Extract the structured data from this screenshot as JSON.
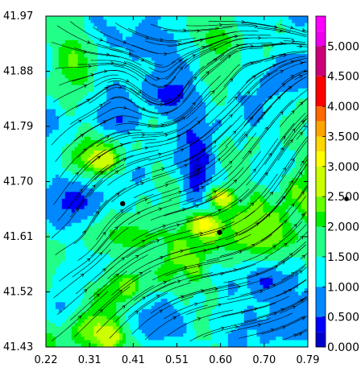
{
  "chart_data": {
    "type": "heatmap",
    "subtype": "scalar field with streamlines",
    "title": "",
    "xlabel": "",
    "ylabel": "",
    "xlim": [
      0.22,
      0.79
    ],
    "ylim": [
      41.43,
      41.97
    ],
    "x_ticks": [
      "0.22",
      "0.31",
      "0.41",
      "0.51",
      "0.60",
      "0.70",
      "0.79"
    ],
    "y_ticks": [
      "41.97",
      "41.88",
      "41.79",
      "41.70",
      "41.61",
      "41.52",
      "41.43"
    ],
    "colorbar": {
      "range": [
        0,
        5.5
      ],
      "labels": [
        "5.000",
        "4.500",
        "4.000",
        "3.500",
        "3.000",
        "2.500",
        "2.000",
        "1.500",
        "1.000",
        "0.500",
        "0.000"
      ],
      "values": [
        5.0,
        4.5,
        4.0,
        3.5,
        3.0,
        2.5,
        2.0,
        1.5,
        1.0,
        0.5,
        0.0
      ],
      "bands": [
        {
          "from": 5.25,
          "to": 5.5,
          "color": "#ff00ff"
        },
        {
          "from": 5.0,
          "to": 5.25,
          "color": "#ee00ee"
        },
        {
          "from": 4.5,
          "to": 5.0,
          "color": "#cc0077"
        },
        {
          "from": 4.0,
          "to": 4.5,
          "color": "#ff0000"
        },
        {
          "from": 3.75,
          "to": 4.0,
          "color": "#ff6a00"
        },
        {
          "from": 3.5,
          "to": 3.75,
          "color": "#ffa500"
        },
        {
          "from": 3.25,
          "to": 3.5,
          "color": "#ffd700"
        },
        {
          "from": 3.0,
          "to": 3.25,
          "color": "#ffff00"
        },
        {
          "from": 2.5,
          "to": 3.0,
          "color": "#ccff00"
        },
        {
          "from": 2.25,
          "to": 2.5,
          "color": "#66ff00"
        },
        {
          "from": 2.0,
          "to": 2.25,
          "color": "#00ee00"
        },
        {
          "from": 1.5,
          "to": 2.0,
          "color": "#22ff88"
        },
        {
          "from": 1.0,
          "to": 1.5,
          "color": "#00ffff"
        },
        {
          "from": 0.5,
          "to": 1.0,
          "color": "#0088ff"
        },
        {
          "from": 0.25,
          "to": 0.5,
          "color": "#0000ff"
        },
        {
          "from": 0.0,
          "to": 0.25,
          "color": "#0000cc"
        },
        {
          "from": -0.25,
          "to": 0.0,
          "color": "#8800ff"
        }
      ]
    },
    "field_features": [
      {
        "value": 0.2,
        "x": 0.55,
        "y": 41.72,
        "sx": 0.025,
        "sy": 0.05
      },
      {
        "value": 0.3,
        "x": 0.49,
        "y": 41.84,
        "sx": 0.04,
        "sy": 0.025
      },
      {
        "value": 0.4,
        "x": 0.38,
        "y": 41.8,
        "sx": 0.03,
        "sy": 0.02
      },
      {
        "value": 0.3,
        "x": 0.29,
        "y": 41.66,
        "sx": 0.045,
        "sy": 0.035
      },
      {
        "value": 0.5,
        "x": 0.75,
        "y": 41.88,
        "sx": 0.035,
        "sy": 0.025
      },
      {
        "value": 0.6,
        "x": 0.44,
        "y": 41.925,
        "sx": 0.05,
        "sy": 0.025
      },
      {
        "value": 0.8,
        "x": 0.36,
        "y": 41.6,
        "sx": 0.04,
        "sy": 0.03
      },
      {
        "value": 0.3,
        "x": 0.7,
        "y": 41.54,
        "sx": 0.04,
        "sy": 0.03
      },
      {
        "value": 0.5,
        "x": 0.45,
        "y": 41.47,
        "sx": 0.06,
        "sy": 0.025
      },
      {
        "value": 0.6,
        "x": 0.26,
        "y": 41.49,
        "sx": 0.035,
        "sy": 0.03
      },
      {
        "value": 0.7,
        "x": 0.75,
        "y": 41.47,
        "sx": 0.05,
        "sy": 0.03
      },
      {
        "value": 2.2,
        "x": 0.4,
        "y": 41.61,
        "sx": 0.08,
        "sy": 0.025
      },
      {
        "value": 2.4,
        "x": 0.33,
        "y": 41.74,
        "sx": 0.05,
        "sy": 0.025
      },
      {
        "value": 2.3,
        "x": 0.28,
        "y": 41.9,
        "sx": 0.035,
        "sy": 0.04
      },
      {
        "value": 2.4,
        "x": 0.7,
        "y": 41.61,
        "sx": 0.06,
        "sy": 0.03
      },
      {
        "value": 2.5,
        "x": 0.33,
        "y": 41.46,
        "sx": 0.05,
        "sy": 0.03
      },
      {
        "value": 2.2,
        "x": 0.6,
        "y": 41.93,
        "sx": 0.04,
        "sy": 0.03
      },
      {
        "value": 3.2,
        "x": 0.565,
        "y": 41.63,
        "sx": 0.025,
        "sy": 0.015
      },
      {
        "value": 3.1,
        "x": 0.6,
        "y": 41.675,
        "sx": 0.02,
        "sy": 0.012
      },
      {
        "value": 2.9,
        "x": 0.345,
        "y": 41.735,
        "sx": 0.02,
        "sy": 0.012
      },
      {
        "value": 3.0,
        "x": 0.36,
        "y": 41.445,
        "sx": 0.018,
        "sy": 0.012
      }
    ],
    "flow_features": [
      {
        "type": "vortex",
        "x": 0.48,
        "y": 41.84,
        "strength": 1.0,
        "radius": 0.06
      },
      {
        "type": "vortex",
        "x": 0.37,
        "y": 41.86,
        "strength": -0.6,
        "radius": 0.05
      },
      {
        "type": "vortex",
        "x": 0.64,
        "y": 41.9,
        "strength": -0.5,
        "radius": 0.04
      },
      {
        "type": "vortex",
        "x": 0.3,
        "y": 41.6,
        "strength": 0.5,
        "radius": 0.05
      }
    ],
    "markers": [
      {
        "x": 0.387,
        "y": 41.664
      },
      {
        "x": 0.598,
        "y": 41.617
      }
    ],
    "off_axis_marker": true
  }
}
